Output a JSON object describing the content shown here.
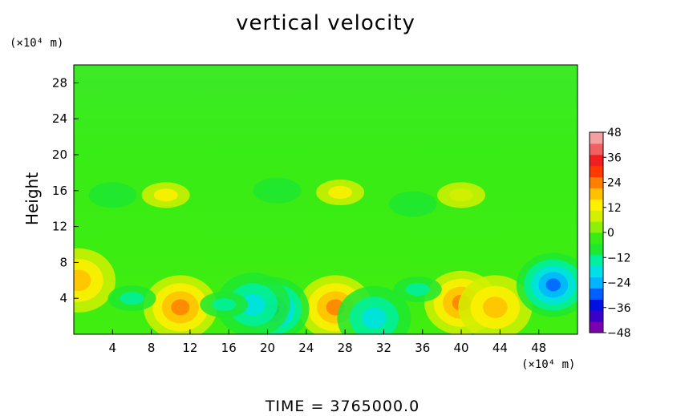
{
  "chart_data": {
    "type": "heatmap",
    "title": "vertical velocity",
    "ylabel": "Height",
    "xlabel": "",
    "x_unit": "(×10⁴ m)",
    "y_unit": "(×10⁴ m)",
    "footer": "TIME  =  3765000.0",
    "xlim": [
      0,
      52
    ],
    "ylim": [
      0,
      30
    ],
    "x_ticks": [
      "4",
      "8",
      "12",
      "16",
      "20",
      "24",
      "28",
      "32",
      "36",
      "40",
      "44",
      "48"
    ],
    "y_ticks": [
      "4",
      "8",
      "12",
      "16",
      "20",
      "24",
      "28"
    ],
    "x_tick_values": [
      4,
      8,
      12,
      16,
      20,
      24,
      28,
      32,
      36,
      40,
      44,
      48
    ],
    "y_tick_values": [
      4,
      8,
      12,
      16,
      20,
      24,
      28
    ],
    "colorbar": {
      "min": -48,
      "max": 48,
      "labels": [
        "48",
        "36",
        "24",
        "12",
        "0",
        "−12",
        "−24",
        "−36",
        "−48"
      ],
      "label_values": [
        48,
        36,
        24,
        12,
        0,
        -12,
        -24,
        -36,
        -48
      ],
      "colors": [
        "#7a00b0",
        "#3a00c8",
        "#0010e0",
        "#0060ff",
        "#00b4ff",
        "#00e0e6",
        "#00f0a0",
        "#1ee830",
        "#38ec14",
        "#8cf00a",
        "#d2f000",
        "#fff000",
        "#ffc000",
        "#ff8000",
        "#ff3a00",
        "#f01e1e",
        "#f06060",
        "#f2a0a0"
      ]
    },
    "features": [
      {
        "x": 11,
        "y": 3,
        "value": 22
      },
      {
        "x": 27,
        "y": 3,
        "value": 26
      },
      {
        "x": 40,
        "y": 3.5,
        "value": 22
      },
      {
        "x": 43.5,
        "y": 3,
        "value": 16
      },
      {
        "x": 0.5,
        "y": 6,
        "value": 18
      },
      {
        "x": 20.5,
        "y": 2.8,
        "value": -28
      },
      {
        "x": 49.5,
        "y": 5.5,
        "value": -30
      },
      {
        "x": 18.5,
        "y": 3.3,
        "value": -20
      },
      {
        "x": 31,
        "y": 1.8,
        "value": -18
      },
      {
        "x": 6,
        "y": 4,
        "value": -12
      },
      {
        "x": 15.5,
        "y": 3.3,
        "value": -14
      },
      {
        "x": 35.5,
        "y": 5,
        "value": -14
      },
      {
        "x": 27.5,
        "y": 15.8,
        "value": 14
      },
      {
        "x": 9.5,
        "y": 15.5,
        "value": 12
      },
      {
        "x": 40,
        "y": 15.5,
        "value": 10
      },
      {
        "x": 4,
        "y": 15.5,
        "value": -8
      },
      {
        "x": 21,
        "y": 16,
        "value": -8
      },
      {
        "x": 35,
        "y": 14.5,
        "value": -8
      }
    ]
  }
}
